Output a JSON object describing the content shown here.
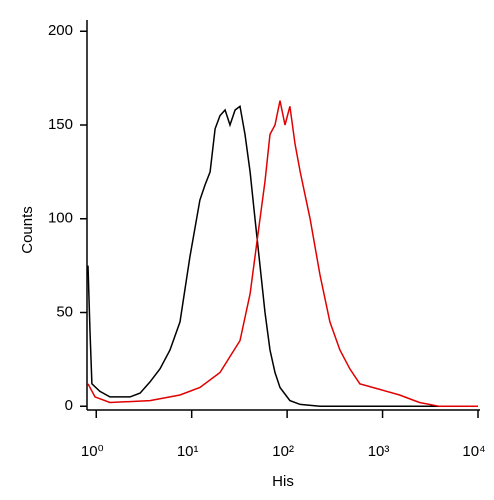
{
  "chart_data": {
    "type": "line",
    "x_label": "His",
    "y_label": "Counts",
    "log_x": true,
    "xlim": [
      0.8,
      10000
    ],
    "xticks": [
      {
        "value": 1,
        "label": "10⁰"
      },
      {
        "value": 10,
        "label": "10¹"
      },
      {
        "value": 100,
        "label": "10²"
      },
      {
        "value": 1000,
        "label": "10³"
      },
      {
        "value": 10000,
        "label": "10⁴"
      }
    ],
    "ylim": [
      -2,
      206
    ],
    "yticks": [
      0,
      50,
      100,
      150,
      200
    ],
    "series": [
      {
        "color": "#000000",
        "x": [
          0.82,
          0.86,
          0.9,
          1.09,
          1.39,
          2.26,
          2.88,
          3.66,
          4.66,
          5.93,
          7.55,
          9.6,
          12.2,
          13.8,
          15.6,
          17.6,
          19.8,
          22.4,
          25.2,
          28.5,
          32.1,
          36.2,
          40.9,
          46.1,
          52.0,
          58.7,
          66.2,
          74.7,
          84.3,
          107,
          137,
          221,
          10000
        ],
        "values": [
          75,
          40,
          12,
          8,
          5,
          5,
          7,
          13,
          20,
          30,
          45,
          80,
          110,
          118,
          125,
          148,
          155,
          158,
          150,
          158,
          160,
          145,
          125,
          100,
          75,
          50,
          30,
          18,
          10,
          3,
          1,
          0,
          0
        ]
      },
      {
        "color": "#e00000",
        "x": [
          0.82,
          0.97,
          1.39,
          3.66,
          7.55,
          12.2,
          19.8,
          32.1,
          40.9,
          52.0,
          58.7,
          66.2,
          74.7,
          84.3,
          95.1,
          107,
          121,
          137,
          174,
          221,
          281,
          357,
          454,
          577,
          933,
          1510,
          2440,
          3930,
          10000
        ],
        "values": [
          12,
          5,
          2,
          3,
          6,
          10,
          18,
          35,
          60,
          100,
          120,
          145,
          150,
          163,
          150,
          160,
          140,
          125,
          100,
          70,
          45,
          30,
          20,
          12,
          9,
          6,
          2,
          0,
          0
        ]
      }
    ]
  }
}
